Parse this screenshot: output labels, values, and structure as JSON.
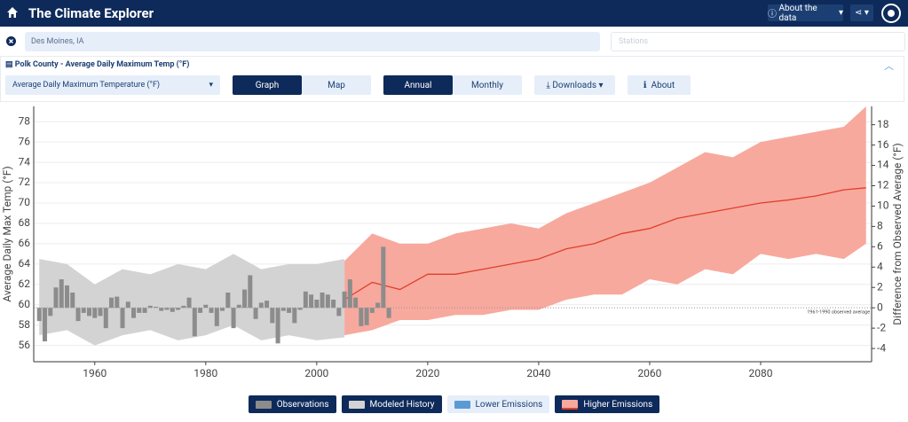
{
  "nav": {
    "title": "The Climate Explorer",
    "about": "About the data"
  },
  "location": {
    "value": "Des Moines, IA"
  },
  "stations": {
    "placeholder": "Stations"
  },
  "panel": {
    "title": "Polk County - Average Daily Maximum Temp (°F)"
  },
  "controls": {
    "variable": "Average Daily Maximum Temperature (°F)",
    "graph": "Graph",
    "map": "Map",
    "annual": "Annual",
    "monthly": "Monthly",
    "downloads": "Downloads",
    "about": "About"
  },
  "chart_data": {
    "type": "line",
    "ylabel": "Average Daily Max Temp (°F)",
    "y2label": "Difference from Observed Average (°F)",
    "xlim": [
      1949,
      2100
    ],
    "xticks": [
      1960,
      1980,
      2000,
      2020,
      2040,
      2060,
      2080
    ],
    "ylim": [
      54.4,
      79.5
    ],
    "yticks": [
      56,
      58,
      60,
      62,
      64,
      66,
      68,
      70,
      72,
      74,
      76,
      78
    ],
    "y2lim": [
      -5.3,
      19.8
    ],
    "y2ticks": [
      -4,
      -2,
      0,
      2,
      4,
      6,
      8,
      10,
      12,
      14,
      16,
      18
    ],
    "grid": true,
    "reference_line": {
      "value": 0,
      "axis": "y2",
      "label": "1961-1990 observed average"
    },
    "series": [
      {
        "name": "Observations",
        "type": "bar",
        "axis": "y2",
        "color": "#8c8c8c",
        "x": [
          1950,
          1951,
          1952,
          1953,
          1954,
          1955,
          1956,
          1957,
          1958,
          1959,
          1960,
          1961,
          1962,
          1963,
          1964,
          1965,
          1966,
          1967,
          1968,
          1969,
          1970,
          1971,
          1972,
          1973,
          1974,
          1975,
          1976,
          1977,
          1978,
          1979,
          1980,
          1981,
          1982,
          1983,
          1984,
          1985,
          1986,
          1987,
          1988,
          1989,
          1990,
          1991,
          1992,
          1993,
          1994,
          1995,
          1996,
          1997,
          1998,
          1999,
          2000,
          2001,
          2002,
          2003,
          2004,
          2005,
          2006,
          2007,
          2008,
          2009,
          2010,
          2011,
          2012,
          2013
        ],
        "values": [
          -1.3,
          -3.3,
          -0.8,
          2.0,
          2.8,
          2.2,
          1.5,
          -1.3,
          -0.5,
          -0.8,
          -1.0,
          -0.8,
          -2.0,
          1.0,
          1.1,
          -2.0,
          0.6,
          -1.0,
          -0.5,
          -0.5,
          0.2,
          0.1,
          -0.3,
          -0.2,
          -0.4,
          -0.2,
          0.2,
          1.0,
          -2.8,
          -0.5,
          0.3,
          -0.5,
          -1.8,
          -0.3,
          1.5,
          -2.0,
          0.3,
          1.8,
          3.2,
          -1.1,
          0.5,
          0.7,
          -1.5,
          -3.5,
          -0.3,
          -0.5,
          -1.5,
          -0.2,
          1.6,
          1.3,
          0.8,
          1.5,
          1.3,
          0.8,
          -0.8,
          1.6,
          2.8,
          1.0,
          -1.8,
          -1.7,
          -0.5,
          0.5,
          6.0,
          -1.0
        ]
      },
      {
        "name": "Modeled History",
        "type": "area",
        "color": "#d3d3d3",
        "x": [
          1950,
          1955,
          1960,
          1965,
          1970,
          1975,
          1980,
          1985,
          1990,
          1995,
          2000,
          2005
        ],
        "lower": [
          57,
          57.5,
          56,
          57,
          57.5,
          56.5,
          57,
          58,
          56.5,
          57,
          56.5,
          56.8
        ],
        "upper": [
          64.5,
          64,
          62,
          63.5,
          63,
          64,
          63.5,
          65,
          63.5,
          64,
          64,
          64.5
        ]
      },
      {
        "name": "Lower Emissions",
        "type": "area",
        "color": "#5b9bd5"
      },
      {
        "name": "Higher Emissions",
        "type": "area",
        "color": "#f7a99e",
        "line_color": "#e0402a",
        "x": [
          2005,
          2010,
          2015,
          2020,
          2025,
          2030,
          2035,
          2040,
          2045,
          2050,
          2055,
          2060,
          2065,
          2070,
          2075,
          2080,
          2085,
          2090,
          2095,
          2099
        ],
        "lower": [
          57,
          57.5,
          58.5,
          58.5,
          59,
          59,
          59.5,
          59.5,
          60.5,
          61,
          61,
          62.5,
          62,
          63.5,
          63,
          65,
          64.5,
          65,
          64.5,
          66
        ],
        "upper": [
          64.3,
          67,
          66,
          66,
          67,
          67.5,
          68,
          67.5,
          69,
          70,
          71,
          72,
          73.5,
          75,
          74.5,
          76,
          76.5,
          77,
          77.5,
          79.5
        ],
        "values": [
          60.5,
          62.2,
          61.5,
          63,
          63,
          63.5,
          64,
          64.5,
          65.5,
          66,
          67,
          67.5,
          68.5,
          69,
          69.5,
          70,
          70.3,
          70.7,
          71.3,
          71.5
        ]
      }
    ]
  }
}
